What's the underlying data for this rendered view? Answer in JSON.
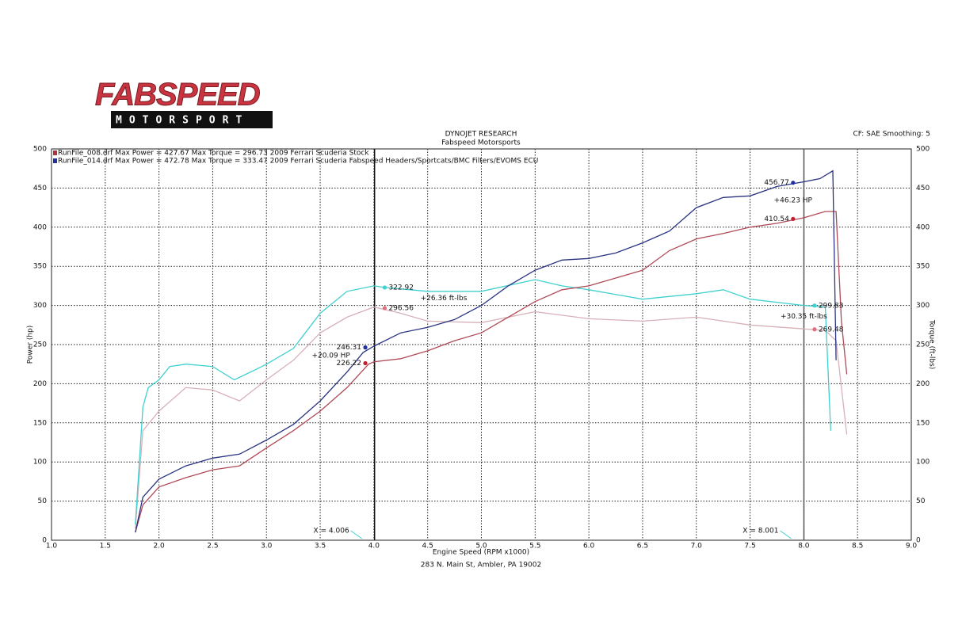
{
  "logo": {
    "title": "FABSPEED",
    "subtitle": "MOTORSPORT"
  },
  "chart_data": {
    "type": "line",
    "title": "DYNOJET RESEARCH",
    "subtitle": "Fabspeed Motorsports",
    "settings_note": "CF: SAE  Smoothing: 5",
    "footer": "283 N. Main St, Ambler, PA 19002",
    "x_label": "Engine Speed (RPM x1000)",
    "y_label": "Power (hp)",
    "y2_label": "Torque (ft-lbs)",
    "legend": [
      {
        "text": "RunFile_008.drf Max Power = 427.67  Max Torque = 296.73   2009 Ferrari Scuderia Stock",
        "color": "#b03040"
      },
      {
        "text": "RunFile_014.drf Max Power = 472.78  Max Torque = 333.47   2009 Ferrari Scuderia Fabspeed Headers/Sportcats/BMC Filters/EVOMS ECU",
        "color": "#2030a0"
      }
    ],
    "xlim": [
      1.0,
      9.0
    ],
    "xticks": [
      {
        "value": 1.0,
        "label": "1.0"
      },
      1.5,
      {
        "value": 2.0,
        "label": "2.0"
      },
      2.5,
      {
        "value": 3.0,
        "label": "3.0"
      },
      3.5,
      {
        "value": 4.0,
        "label": "4.0"
      },
      4.5,
      {
        "value": 5.0,
        "label": "5.0"
      },
      5.5,
      {
        "value": 6.0,
        "label": "6.0"
      },
      6.5,
      {
        "value": 7.0,
        "label": "7.0"
      },
      7.5,
      {
        "value": 8.0,
        "label": "8.0"
      },
      8.5,
      {
        "value": 9.0,
        "label": "9.0"
      }
    ],
    "ylim": [
      0,
      500
    ],
    "yticks": [
      0,
      50,
      100,
      150,
      200,
      250,
      300,
      350,
      400,
      450,
      500
    ],
    "y2lim": [
      0,
      500
    ],
    "y2ticks": [
      0,
      50,
      100,
      150,
      200,
      250,
      300,
      350,
      400,
      450,
      500
    ],
    "grid": true,
    "series": [
      {
        "color": "#d8b0b8",
        "axis": "y2",
        "x": [
          1.78,
          1.85,
          2.0,
          2.25,
          2.5,
          2.75,
          3.0,
          3.25,
          3.5,
          3.75,
          4.0,
          4.25,
          4.5,
          5.0,
          5.5,
          6.0,
          6.5,
          7.0,
          7.5,
          8.0,
          8.2,
          8.3,
          8.4
        ],
        "values": [
          15,
          140,
          165,
          195,
          192,
          178,
          205,
          230,
          265,
          285,
          298,
          290,
          280,
          278,
          292,
          283,
          280,
          285,
          275,
          270,
          268,
          255,
          135
        ]
      },
      {
        "color": "#40d0d0",
        "axis": "y2",
        "x": [
          1.78,
          1.85,
          1.9,
          2.0,
          2.1,
          2.25,
          2.5,
          2.7,
          2.9,
          3.0,
          3.25,
          3.5,
          3.75,
          4.0,
          4.1,
          4.5,
          5.0,
          5.5,
          5.75,
          6.0,
          6.5,
          7.0,
          7.25,
          7.5,
          8.0,
          8.2,
          8.25
        ],
        "values": [
          20,
          170,
          195,
          205,
          222,
          225,
          222,
          205,
          218,
          225,
          245,
          290,
          318,
          325,
          323,
          318,
          318,
          333,
          325,
          320,
          308,
          315,
          320,
          308,
          300,
          298,
          140
        ]
      },
      {
        "color": "#b04a58",
        "x": [
          1.78,
          1.85,
          2.0,
          2.25,
          2.5,
          2.75,
          3.0,
          3.25,
          3.5,
          3.75,
          3.95,
          4.0,
          4.25,
          4.5,
          4.75,
          5.0,
          5.25,
          5.5,
          5.75,
          6.0,
          6.25,
          6.5,
          6.75,
          7.0,
          7.25,
          7.5,
          7.75,
          8.0,
          8.2,
          8.3,
          8.35,
          8.4
        ],
        "values": [
          10,
          45,
          68,
          80,
          90,
          95,
          118,
          140,
          165,
          195,
          225,
          228,
          232,
          242,
          255,
          265,
          285,
          305,
          320,
          325,
          335,
          345,
          370,
          385,
          392,
          400,
          405,
          412,
          420,
          420,
          280,
          212
        ]
      },
      {
        "color": "#2a3480",
        "x": [
          1.78,
          1.85,
          2.0,
          2.25,
          2.5,
          2.75,
          3.0,
          3.25,
          3.5,
          3.75,
          3.9,
          4.0,
          4.25,
          4.5,
          4.75,
          5.0,
          5.25,
          5.5,
          5.75,
          6.0,
          6.25,
          6.5,
          6.75,
          7.0,
          7.25,
          7.5,
          7.75,
          8.0,
          8.15,
          8.27,
          8.3
        ],
        "values": [
          10,
          55,
          78,
          95,
          105,
          110,
          128,
          148,
          178,
          215,
          240,
          248,
          265,
          272,
          282,
          300,
          325,
          345,
          358,
          360,
          367,
          380,
          395,
          425,
          438,
          440,
          452,
          458,
          462,
          472,
          230
        ]
      }
    ],
    "cursors": [
      {
        "value": 4.006,
        "label": "X = 4.006"
      },
      {
        "value": 8.001,
        "label": "X = 8.001"
      }
    ],
    "point_labels": [
      {
        "x": 7.9,
        "y": 456.77,
        "color": "#2030a0"
      },
      {
        "x": 7.9,
        "y": 410.54,
        "color": "#c02030"
      },
      {
        "x": 4.1,
        "y": 322.92,
        "color": "#40d0d0"
      },
      {
        "x": 4.1,
        "y": 296.56,
        "color": "#e07080"
      },
      {
        "x": 3.92,
        "y": 246.31,
        "color": "#2030a0"
      },
      {
        "x": 3.92,
        "y": 226.22,
        "color": "#c02030"
      },
      {
        "x": 8.1,
        "y": 299.83,
        "color": "#40d0d0"
      },
      {
        "x": 8.1,
        "y": 269.48,
        "color": "#e07080"
      }
    ],
    "deltas": [
      "+46.23 HP",
      "+26.36 ft-lbs",
      "+20.09 HP",
      "+30.35 ft-lbs"
    ]
  }
}
